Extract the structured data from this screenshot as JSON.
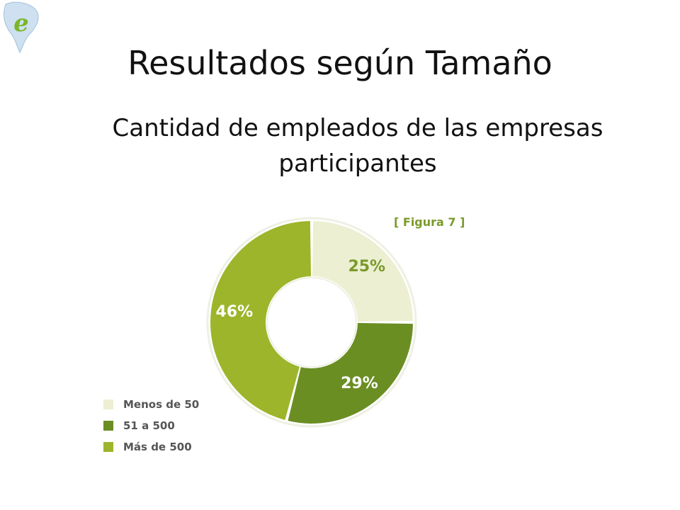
{
  "slide": {
    "title": "Resultados según Tamaño",
    "subtitle": "Cantidad de empleados de las empresas participantes",
    "figure_tag": "[ Figura 7 ]",
    "logo_icon": "globe-e-logo-icon"
  },
  "colors": {
    "menos_50": "#ecefd1",
    "de_51_500": "#6b8e23",
    "mas_500": "#9cb52a",
    "figure_tag": "#7a9a2a"
  },
  "chart_data": {
    "type": "pie",
    "donut": true,
    "start": "12 o'clock, clockwise",
    "labels": [
      "Menos de 50",
      "51 a 500",
      "Más de 500"
    ],
    "values": [
      25,
      29,
      46
    ],
    "data_labels": [
      "25%",
      "29%",
      "46%"
    ],
    "legend_position": "bottom-left"
  }
}
